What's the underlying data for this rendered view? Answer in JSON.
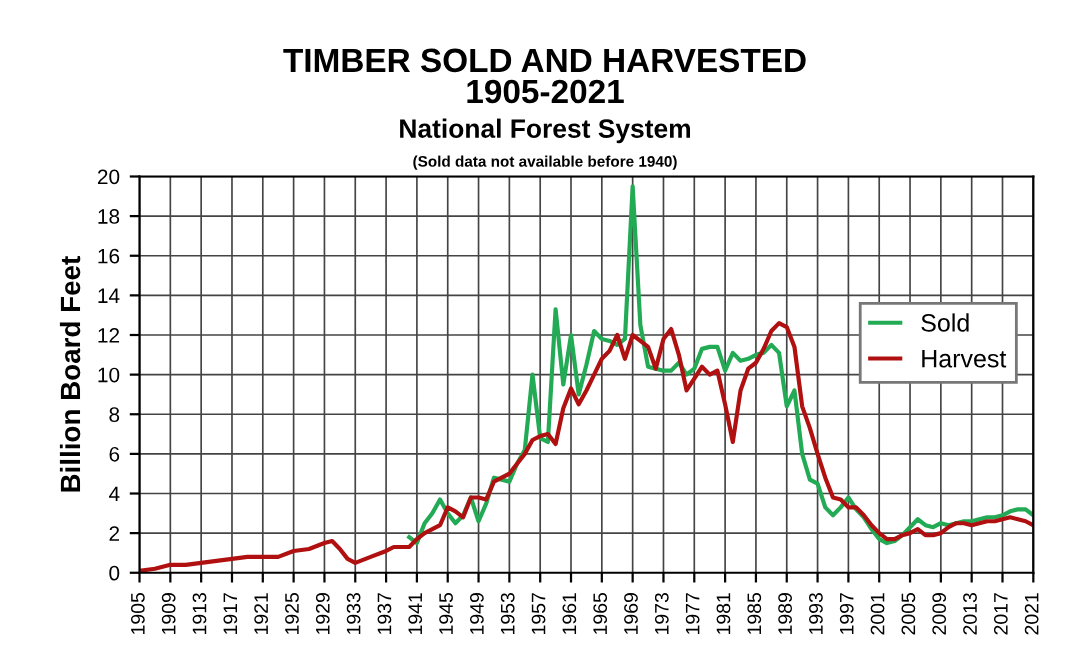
{
  "chart_data": {
    "type": "line",
    "title": "TIMBER SOLD AND HARVESTED\n1905-2021",
    "subtitle": "National Forest System",
    "annotations": [
      "(Sold data not available before 1940)"
    ],
    "ylabel": "Billion Board Feet",
    "series": [
      {
        "name": "Sold",
        "color": "#22aa55",
        "x": [
          1940,
          1941,
          1942,
          1943,
          1944,
          1945,
          1946,
          1947,
          1948,
          1949,
          1950,
          1951,
          1952,
          1953,
          1954,
          1955,
          1956,
          1957,
          1958,
          1959,
          1960,
          1961,
          1962,
          1963,
          1964,
          1965,
          1966,
          1967,
          1968,
          1969,
          1970,
          1971,
          1972,
          1973,
          1974,
          1975,
          1976,
          1977,
          1978,
          1979,
          1980,
          1981,
          1982,
          1983,
          1984,
          1985,
          1986,
          1987,
          1988,
          1989,
          1990,
          1991,
          1992,
          1993,
          1994,
          1995,
          1996,
          1997,
          1998,
          1999,
          2000,
          2001,
          2002,
          2003,
          2004,
          2005,
          2006,
          2007,
          2008,
          2009,
          2010,
          2011,
          2012,
          2013,
          2014,
          2015,
          2016,
          2017,
          2018,
          2019,
          2020,
          2021
        ],
        "values": [
          1.8,
          1.5,
          2.5,
          3.0,
          3.7,
          3.0,
          2.5,
          2.9,
          3.8,
          2.6,
          3.5,
          4.8,
          4.7,
          4.6,
          5.5,
          6.2,
          10.0,
          6.8,
          6.6,
          13.3,
          9.5,
          12.0,
          9.0,
          10.5,
          12.2,
          11.8,
          11.7,
          11.5,
          11.8,
          19.5,
          12.5,
          10.4,
          10.3,
          10.2,
          10.2,
          10.6,
          10.0,
          10.3,
          11.3,
          11.4,
          11.4,
          10.2,
          11.1,
          10.7,
          10.8,
          11.0,
          11.1,
          11.5,
          11.1,
          8.4,
          9.2,
          6.0,
          4.7,
          4.5,
          3.3,
          2.9,
          3.3,
          3.8,
          3.2,
          2.8,
          2.2,
          1.7,
          1.5,
          1.6,
          1.9,
          2.3,
          2.7,
          2.4,
          2.3,
          2.5,
          2.4,
          2.5,
          2.6,
          2.6,
          2.7,
          2.8,
          2.8,
          2.9,
          3.1,
          3.2,
          3.2,
          2.9
        ]
      },
      {
        "name": "Harvest",
        "color": "#b01010",
        "x": [
          1905,
          1907,
          1909,
          1911,
          1913,
          1915,
          1917,
          1919,
          1921,
          1923,
          1925,
          1927,
          1929,
          1930,
          1931,
          1932,
          1933,
          1935,
          1937,
          1938,
          1940,
          1941,
          1942,
          1943,
          1944,
          1945,
          1946,
          1947,
          1948,
          1949,
          1950,
          1951,
          1952,
          1953,
          1954,
          1955,
          1956,
          1957,
          1958,
          1959,
          1960,
          1961,
          1962,
          1963,
          1964,
          1965,
          1966,
          1967,
          1968,
          1969,
          1970,
          1971,
          1972,
          1973,
          1974,
          1975,
          1976,
          1977,
          1978,
          1979,
          1980,
          1981,
          1982,
          1983,
          1984,
          1985,
          1986,
          1987,
          1988,
          1989,
          1990,
          1991,
          1992,
          1993,
          1994,
          1995,
          1996,
          1997,
          1998,
          1999,
          2000,
          2001,
          2002,
          2003,
          2004,
          2005,
          2006,
          2007,
          2008,
          2009,
          2010,
          2011,
          2012,
          2013,
          2014,
          2015,
          2016,
          2017,
          2018,
          2019,
          2020,
          2021
        ],
        "values": [
          0.1,
          0.2,
          0.4,
          0.4,
          0.5,
          0.6,
          0.7,
          0.8,
          0.8,
          0.8,
          1.1,
          1.2,
          1.5,
          1.6,
          1.2,
          0.7,
          0.5,
          0.8,
          1.1,
          1.3,
          1.3,
          1.7,
          2.0,
          2.2,
          2.4,
          3.3,
          3.1,
          2.8,
          3.8,
          3.8,
          3.7,
          4.6,
          4.8,
          5.0,
          5.5,
          6.0,
          6.7,
          6.9,
          7.0,
          6.5,
          8.3,
          9.3,
          8.5,
          9.2,
          10.0,
          10.8,
          11.2,
          12.0,
          10.8,
          12.0,
          11.7,
          11.4,
          10.3,
          11.8,
          12.3,
          11.0,
          9.2,
          9.8,
          10.4,
          10.0,
          10.2,
          8.5,
          6.6,
          9.2,
          10.3,
          10.6,
          11.3,
          12.2,
          12.6,
          12.4,
          11.4,
          8.4,
          7.3,
          6.0,
          4.8,
          3.8,
          3.7,
          3.3,
          3.3,
          2.9,
          2.4,
          2.0,
          1.7,
          1.7,
          1.9,
          2.0,
          2.2,
          1.9,
          1.9,
          2.0,
          2.3,
          2.5,
          2.5,
          2.4,
          2.5,
          2.6,
          2.6,
          2.7,
          2.8,
          2.7,
          2.6,
          2.4
        ]
      }
    ],
    "xlim": [
      1905,
      2021
    ],
    "xticks": [
      1905,
      1909,
      1913,
      1917,
      1921,
      1925,
      1929,
      1933,
      1937,
      1941,
      1945,
      1949,
      1953,
      1957,
      1961,
      1965,
      1969,
      1973,
      1977,
      1981,
      1985,
      1989,
      1993,
      1997,
      2001,
      2005,
      2009,
      2013,
      2017,
      2021
    ],
    "ylim": [
      0,
      20
    ],
    "yticks": [
      0,
      2,
      4,
      6,
      8,
      10,
      12,
      14,
      16,
      18,
      20
    ],
    "grid": true,
    "legend": "right",
    "marker": "none",
    "line_style": "solid"
  }
}
